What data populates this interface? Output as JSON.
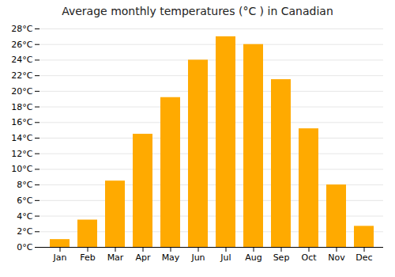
{
  "chart_data": {
    "type": "bar",
    "title": "Average monthly temperatures (°C ) in Canadian",
    "categories": [
      "Jan",
      "Feb",
      "Mar",
      "Apr",
      "May",
      "Jun",
      "Jul",
      "Aug",
      "Sep",
      "Oct",
      "Nov",
      "Dec"
    ],
    "values": [
      1.0,
      3.5,
      8.5,
      14.5,
      19.2,
      24.0,
      27.0,
      26.0,
      21.5,
      15.2,
      8.0,
      2.7
    ],
    "color": "#FFAA00",
    "ylim": [
      0,
      28
    ],
    "yticks": [
      {
        "value": 0,
        "label": "0°C"
      },
      {
        "value": 2,
        "label": "2°C"
      },
      {
        "value": 4,
        "label": "4°C"
      },
      {
        "value": 6,
        "label": "6°C"
      },
      {
        "value": 8,
        "label": "8°C"
      },
      {
        "value": 10,
        "label": "10°C"
      },
      {
        "value": 12,
        "label": "12°C"
      },
      {
        "value": 14,
        "label": "14°C"
      },
      {
        "value": 16,
        "label": "16°C"
      },
      {
        "value": 18,
        "label": "18°C"
      },
      {
        "value": 20,
        "label": "20°C"
      },
      {
        "value": 22,
        "label": "22°C"
      },
      {
        "value": 24,
        "label": "24°C"
      },
      {
        "value": 26,
        "label": "26°C"
      },
      {
        "value": 28,
        "label": "28°C"
      }
    ],
    "grid": true
  }
}
